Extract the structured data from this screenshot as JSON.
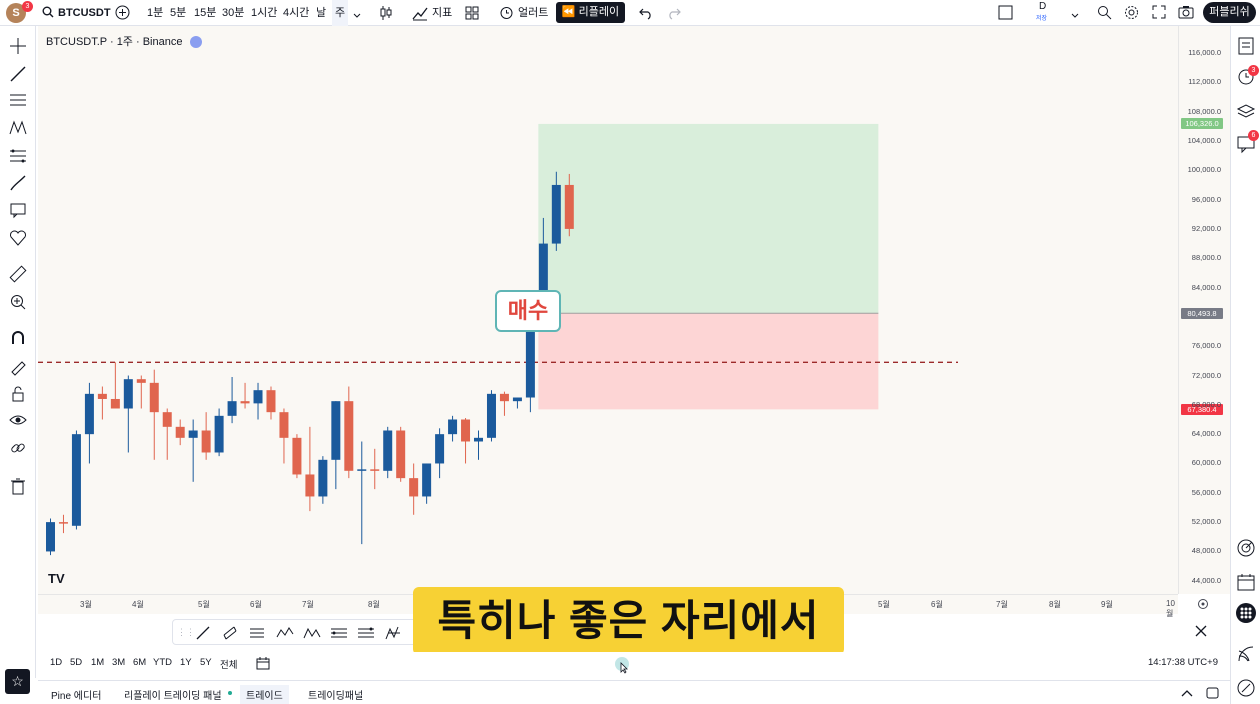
{
  "topbar": {
    "avatar_letter": "S",
    "avatar_badge": "3",
    "symbol": "BTCUSDT",
    "intervals": [
      "1분",
      "5분",
      "15분",
      "30분",
      "1시간",
      "4시간",
      "날",
      "주"
    ],
    "active_interval": "주",
    "indicators_label": "지표",
    "alert_label": "얼러트",
    "replay_label": "리플레이",
    "layout_label": "D",
    "layout_sub": "저장",
    "publish_label": "퍼블리쉬"
  },
  "chart": {
    "legend": "BTCUSDT.P · 1주 · Binance",
    "buy_label": "매수",
    "subtitle": "특히나 좋은 자리에서",
    "tv_logo": "TV",
    "price_labels": [
      "116,000.0",
      "112,000.0",
      "108,000.0",
      "104,000.0",
      "100,000.0",
      "96,000.0",
      "92,000.0",
      "88,000.0",
      "84,000.0",
      "76,000.0",
      "72,000.0",
      "68,000.0",
      "64,000.0",
      "60,000.0",
      "56,000.0",
      "52,000.0",
      "48,000.0",
      "44,000.0"
    ],
    "target_price": "106,326.0",
    "entry_price": "80,493.8",
    "stop_price": "67,380.4",
    "time_labels": [
      "3월",
      "4월",
      "5월",
      "6월",
      "7월",
      "8월",
      "5월",
      "6월",
      "7월",
      "8월",
      "9월",
      "10월"
    ],
    "colors": {
      "up": "#1b5a9c",
      "down": "#e0654e",
      "profit": "#d9eedb",
      "loss": "#fdd5d5",
      "target_tag": "#81c784",
      "entry_tag": "#787b86",
      "stop_tag": "#f23645"
    }
  },
  "chart_data": {
    "type": "candlestick",
    "symbol": "BTCUSDT.P",
    "interval": "1주",
    "exchange": "Binance",
    "ylim": [
      44000,
      116000
    ],
    "candles": [
      {
        "o": 48000,
        "h": 52500,
        "l": 47500,
        "c": 52000
      },
      {
        "o": 52000,
        "h": 53000,
        "l": 50500,
        "c": 51800
      },
      {
        "o": 51500,
        "h": 64500,
        "l": 51000,
        "c": 64000
      },
      {
        "o": 64000,
        "h": 71000,
        "l": 60000,
        "c": 69500
      },
      {
        "o": 69500,
        "h": 70500,
        "l": 66000,
        "c": 68800
      },
      {
        "o": 68800,
        "h": 73800,
        "l": 67500,
        "c": 67500
      },
      {
        "o": 67500,
        "h": 72000,
        "l": 61500,
        "c": 71500
      },
      {
        "o": 71500,
        "h": 72000,
        "l": 67500,
        "c": 71000
      },
      {
        "o": 71000,
        "h": 72800,
        "l": 60500,
        "c": 67000
      },
      {
        "o": 67000,
        "h": 67500,
        "l": 60500,
        "c": 65000
      },
      {
        "o": 65000,
        "h": 66000,
        "l": 62500,
        "c": 63500
      },
      {
        "o": 63500,
        "h": 66000,
        "l": 57500,
        "c": 64500
      },
      {
        "o": 64500,
        "h": 67000,
        "l": 60500,
        "c": 61500
      },
      {
        "o": 61500,
        "h": 67500,
        "l": 61000,
        "c": 66500
      },
      {
        "o": 66500,
        "h": 71800,
        "l": 65500,
        "c": 68500
      },
      {
        "o": 68500,
        "h": 71000,
        "l": 67500,
        "c": 68200
      },
      {
        "o": 68200,
        "h": 71000,
        "l": 66000,
        "c": 70000
      },
      {
        "o": 70000,
        "h": 70500,
        "l": 66000,
        "c": 67000
      },
      {
        "o": 67000,
        "h": 67500,
        "l": 60000,
        "c": 63500
      },
      {
        "o": 63500,
        "h": 64000,
        "l": 58000,
        "c": 58500
      },
      {
        "o": 58500,
        "h": 65000,
        "l": 53500,
        "c": 55500
      },
      {
        "o": 55500,
        "h": 61000,
        "l": 54500,
        "c": 60500
      },
      {
        "o": 60500,
        "h": 68500,
        "l": 56500,
        "c": 68500
      },
      {
        "o": 68500,
        "h": 70500,
        "l": 58000,
        "c": 59000
      },
      {
        "o": 59000,
        "h": 63000,
        "l": 49000,
        "c": 59200
      },
      {
        "o": 59200,
        "h": 62000,
        "l": 56500,
        "c": 59000
      },
      {
        "o": 59000,
        "h": 65000,
        "l": 58000,
        "c": 64500
      },
      {
        "o": 64500,
        "h": 65000,
        "l": 57500,
        "c": 58000
      },
      {
        "o": 58000,
        "h": 60000,
        "l": 53000,
        "c": 55500
      },
      {
        "o": 55500,
        "h": 60000,
        "l": 54500,
        "c": 60000
      },
      {
        "o": 60000,
        "h": 64800,
        "l": 58000,
        "c": 64000
      },
      {
        "o": 64000,
        "h": 66500,
        "l": 63000,
        "c": 66000
      },
      {
        "o": 66000,
        "h": 66200,
        "l": 60000,
        "c": 63000
      },
      {
        "o": 63000,
        "h": 64500,
        "l": 60500,
        "c": 63500
      },
      {
        "o": 63500,
        "h": 70000,
        "l": 63000,
        "c": 69500
      },
      {
        "o": 69500,
        "h": 69800,
        "l": 66500,
        "c": 68500
      },
      {
        "o": 68500,
        "h": 69000,
        "l": 67500,
        "c": 69000
      },
      {
        "o": 69000,
        "h": 81000,
        "l": 67000,
        "c": 80500
      },
      {
        "o": 80500,
        "h": 93500,
        "l": 80000,
        "c": 90000
      },
      {
        "o": 90000,
        "h": 99800,
        "l": 89000,
        "c": 98000
      },
      {
        "o": 98000,
        "h": 99500,
        "l": 91000,
        "c": 92000
      }
    ],
    "horizontal_line": 73800,
    "long_position": {
      "target": 106326.0,
      "entry": 80493.8,
      "stop": 67380.4
    },
    "annotation": "매수"
  },
  "drawbar": {
    "items": [
      "trend-line",
      "channel",
      "parallel",
      "pattern-a",
      "pattern-b",
      "fib-a",
      "fib-b",
      "elliott"
    ]
  },
  "bottom": {
    "ranges": [
      "1D",
      "5D",
      "1M",
      "3M",
      "6M",
      "YTD",
      "1Y",
      "5Y",
      "전체"
    ],
    "clock": "14:17:38 UTC+9"
  },
  "panels": {
    "tabs": [
      "Pine 에디터",
      "리플레이 트레이딩 패널",
      "트레이드",
      "트레이딩패널"
    ]
  },
  "rightbar": {
    "alerts_badge": "3",
    "chat_badge": "6"
  }
}
